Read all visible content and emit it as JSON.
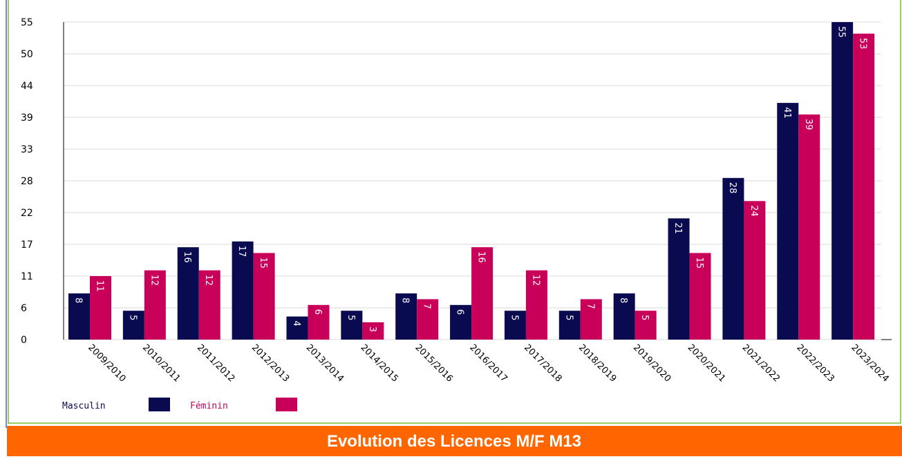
{
  "chart_data": {
    "type": "bar",
    "title": "Evolution des Licences M/F M13",
    "categories": [
      "2009/2010",
      "2010/2011",
      "2011/2012",
      "2012/2013",
      "2013/2014",
      "2014/2015",
      "2015/2016",
      "2016/2017",
      "2017/2018",
      "2018/2019",
      "2019/2020",
      "2020/2021",
      "2021/2022",
      "2022/2023",
      "2023/2024"
    ],
    "series": [
      {
        "name": "Masculin",
        "color": "#0a0a50",
        "values": [
          8,
          5,
          16,
          17,
          4,
          5,
          8,
          6,
          5,
          5,
          8,
          21,
          28,
          41,
          55
        ]
      },
      {
        "name": "Féminin",
        "color": "#c8005a",
        "values": [
          11,
          12,
          12,
          15,
          6,
          3,
          7,
          16,
          12,
          7,
          5,
          15,
          24,
          39,
          53
        ]
      }
    ],
    "ylim": [
      0,
      55
    ],
    "yticks": [
      0,
      {
        "value": 5.5,
        "label": "6"
      },
      11,
      {
        "value": 16.5,
        "label": "17"
      },
      22,
      {
        "value": 27.5,
        "label": "28"
      },
      33,
      {
        "value": 38.5,
        "label": "39"
      },
      44,
      {
        "value": 49.5,
        "label": "50"
      },
      55
    ],
    "grid": true
  }
}
